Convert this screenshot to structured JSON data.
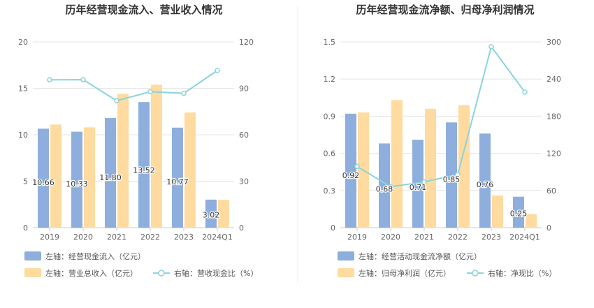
{
  "colors": {
    "bar_blue": "#8eaedd",
    "bar_orange": "#ffdba0",
    "line_cyan": "#8ad4dc",
    "grid": "#e6e6e6",
    "axis": "#cccccc",
    "divider": "#eeeeee"
  },
  "chart_data": [
    {
      "type": "bar+line",
      "title": "历年经营现金流入、营业收入情况",
      "categories": [
        "2019",
        "2020",
        "2021",
        "2022",
        "2023",
        "2024Q1"
      ],
      "left_axis": {
        "ticks": [
          "0",
          "5",
          "10",
          "15",
          "20"
        ],
        "min": 0,
        "max": 20
      },
      "right_axis": {
        "ticks": [
          "0",
          "30",
          "60",
          "90",
          "120"
        ],
        "min": 0,
        "max": 120
      },
      "series": [
        {
          "name": "左轴：经营现金流入（亿元）",
          "axis": "left",
          "kind": "bar",
          "values": [
            10.66,
            10.33,
            11.8,
            13.52,
            10.77,
            3.02
          ],
          "labels": [
            "10.66",
            "10.33",
            "11.80",
            "13.52",
            "10.77",
            "3.02"
          ]
        },
        {
          "name": "左轴：营业总收入（亿元）",
          "axis": "left",
          "kind": "bar",
          "values": [
            11.1,
            10.8,
            14.4,
            15.4,
            12.4,
            3.0
          ]
        },
        {
          "name": "右轴：营收现金比（%）",
          "axis": "right",
          "kind": "line",
          "values": [
            95.5,
            95.6,
            82.0,
            87.8,
            86.8,
            101.5
          ]
        }
      ],
      "grid": true,
      "legend": "bottom"
    },
    {
      "type": "bar+line",
      "title": "历年经营现金流净额、归母净利润情况",
      "categories": [
        "2019",
        "2020",
        "2021",
        "2022",
        "2023",
        "2024Q1"
      ],
      "left_axis": {
        "ticks": [
          "0",
          "0.3",
          "0.6",
          "0.9",
          "1.2",
          "1.5"
        ],
        "min": 0,
        "max": 1.5
      },
      "right_axis": {
        "ticks": [
          "0",
          "60",
          "120",
          "180",
          "240",
          "300"
        ],
        "min": 0,
        "max": 300
      },
      "series": [
        {
          "name": "左轴：经营活动现金流净额（亿元）",
          "axis": "left",
          "kind": "bar",
          "values": [
            0.92,
            0.68,
            0.71,
            0.85,
            0.76,
            0.25
          ],
          "labels": [
            "0.92",
            "0.68",
            "0.71",
            "0.85",
            "0.76",
            "0.25"
          ]
        },
        {
          "name": "左轴：归母净利润（亿元）",
          "axis": "left",
          "kind": "bar",
          "values": [
            0.93,
            1.03,
            0.96,
            0.99,
            0.26,
            0.11
          ]
        },
        {
          "name": "右轴：净现比（%）",
          "axis": "right",
          "kind": "line",
          "values": [
            98.9,
            66.0,
            74.0,
            85.9,
            292.3,
            219.0
          ]
        }
      ],
      "grid": true,
      "legend": "bottom"
    }
  ]
}
